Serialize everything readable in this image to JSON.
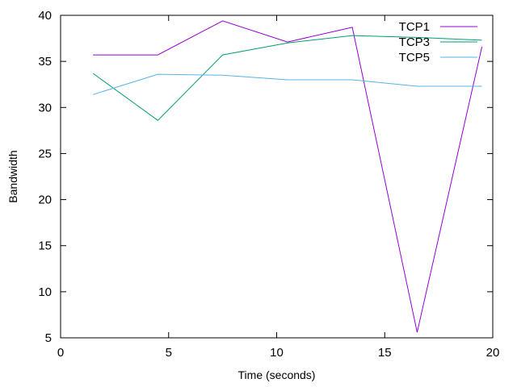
{
  "chart_data": {
    "type": "line",
    "title": "",
    "xlabel": "Time (seconds)",
    "ylabel": "Bandwidth",
    "xlim": [
      0,
      20
    ],
    "ylim": [
      5,
      40
    ],
    "xticks": [
      0,
      5,
      10,
      15,
      20
    ],
    "yticks": [
      5,
      10,
      15,
      20,
      25,
      30,
      35,
      40
    ],
    "grid": false,
    "legend_position": "top-right",
    "series": [
      {
        "name": "TCP1",
        "color": "#9400d3",
        "x": [
          1.5,
          4.5,
          7.5,
          10.5,
          13.5,
          16.5,
          19.5
        ],
        "y": [
          35.7,
          35.7,
          39.4,
          37.1,
          38.7,
          5.6,
          36.6
        ]
      },
      {
        "name": "TCP3",
        "color": "#009e73",
        "x": [
          1.5,
          4.5,
          7.5,
          10.5,
          13.5,
          16.5,
          19.5
        ],
        "y": [
          33.7,
          28.6,
          35.7,
          37.0,
          37.8,
          37.6,
          37.3
        ]
      },
      {
        "name": "TCP5",
        "color": "#56b4e9",
        "x": [
          1.5,
          4.5,
          7.5,
          10.5,
          13.5,
          16.5,
          19.5
        ],
        "y": [
          31.4,
          33.6,
          33.5,
          33.0,
          33.0,
          32.3,
          32.3
        ]
      }
    ]
  }
}
